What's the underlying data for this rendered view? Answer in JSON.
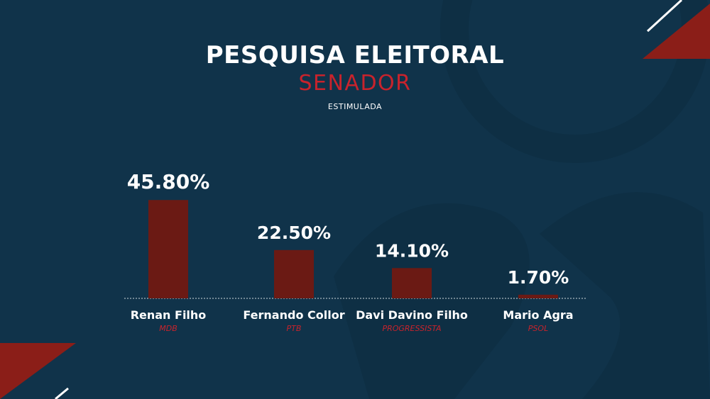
{
  "header": {
    "title": "PESQUISA ELEITORAL",
    "subtitle": "SENADOR",
    "caption": "ESTIMULADA"
  },
  "colors": {
    "background": "#10334a",
    "bar": "#6b1a14",
    "accent_red": "#c8232c",
    "text": "#ffffff"
  },
  "chart_data": {
    "type": "bar",
    "categories": [
      "Renan Filho",
      "Fernando Collor",
      "Davi Davino Filho",
      "Mario Agra"
    ],
    "parties": [
      "MDB",
      "PTB",
      "PROGRESSISTA",
      "PSOL"
    ],
    "values": [
      45.8,
      22.5,
      14.1,
      1.7
    ],
    "value_labels": [
      "45.80%",
      "22.50%",
      "14.10%",
      "1.70%"
    ],
    "ylim": [
      0,
      50
    ],
    "grid": false,
    "legend": "none"
  }
}
